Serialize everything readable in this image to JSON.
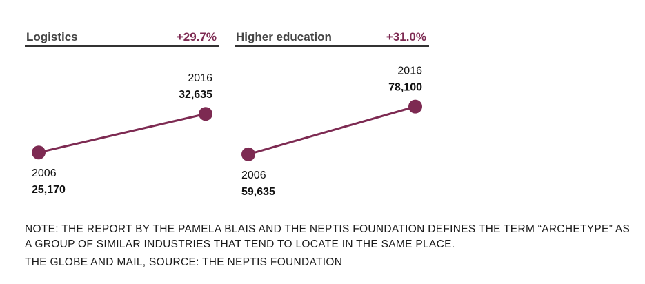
{
  "chart_data": [
    {
      "type": "line",
      "title": "Logistics",
      "change": "+29.7%",
      "x": [
        "2006",
        "2016"
      ],
      "values": [
        25170,
        32635
      ],
      "value_labels": [
        "25,170",
        "32,635"
      ],
      "ylim": [
        20000,
        40000
      ],
      "grid": false
    },
    {
      "type": "line",
      "title": "Higher education",
      "change": "+31.0%",
      "x": [
        "2006",
        "2016"
      ],
      "values": [
        59635,
        78100
      ],
      "value_labels": [
        "59,635",
        "78,100"
      ],
      "ylim": [
        50000,
        90000
      ],
      "grid": false
    }
  ],
  "note": "NOTE: THE REPORT BY THE PAMELA BLAIS AND THE NEPTIS FOUNDATION DEFINES THE TERM “ARCHETYPE” AS A GROUP OF SIMILAR INDUSTRIES THAT TEND TO LOCATE IN THE SAME PLACE.",
  "source": "THE GLOBE AND MAIL, SOURCE: THE NEPTIS FOUNDATION",
  "colors": {
    "accent": "#7d2a52",
    "rule": "#333333"
  }
}
